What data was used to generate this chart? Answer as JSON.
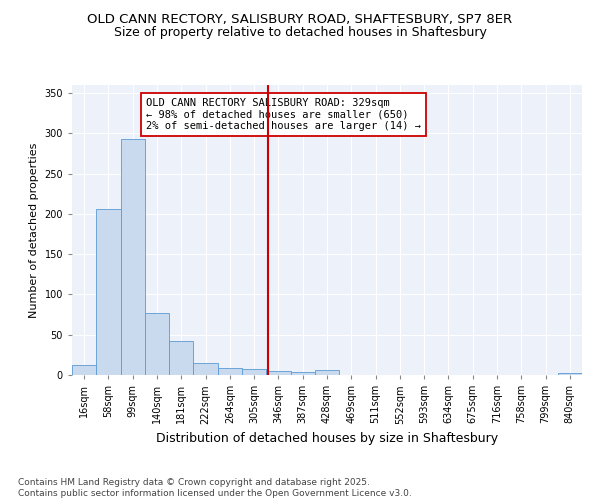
{
  "title": "OLD CANN RECTORY, SALISBURY ROAD, SHAFTESBURY, SP7 8ER",
  "subtitle": "Size of property relative to detached houses in Shaftesbury",
  "xlabel": "Distribution of detached houses by size in Shaftesbury",
  "ylabel": "Number of detached properties",
  "categories": [
    "16sqm",
    "58sqm",
    "99sqm",
    "140sqm",
    "181sqm",
    "222sqm",
    "264sqm",
    "305sqm",
    "346sqm",
    "387sqm",
    "428sqm",
    "469sqm",
    "511sqm",
    "552sqm",
    "593sqm",
    "634sqm",
    "675sqm",
    "716sqm",
    "758sqm",
    "799sqm",
    "840sqm"
  ],
  "values": [
    13,
    206,
    293,
    77,
    42,
    15,
    9,
    7,
    5,
    4,
    6,
    0,
    0,
    0,
    0,
    0,
    0,
    0,
    0,
    0,
    2
  ],
  "bar_color": "#c9d9ee",
  "bar_edge_color": "#5b9bd5",
  "highlight_line_color": "#cc0000",
  "annotation_text": "OLD CANN RECTORY SALISBURY ROAD: 329sqm\n← 98% of detached houses are smaller (650)\n2% of semi-detached houses are larger (14) →",
  "annotation_box_color": "#ffffff",
  "annotation_box_edge_color": "#cc0000",
  "ylim": [
    0,
    360
  ],
  "yticks": [
    0,
    50,
    100,
    150,
    200,
    250,
    300,
    350
  ],
  "bg_color": "#edf1f9",
  "footer_text": "Contains HM Land Registry data © Crown copyright and database right 2025.\nContains public sector information licensed under the Open Government Licence v3.0.",
  "title_fontsize": 9.5,
  "subtitle_fontsize": 9,
  "annotation_fontsize": 7.5,
  "footer_fontsize": 6.5,
  "ylabel_fontsize": 8,
  "xlabel_fontsize": 9,
  "tick_fontsize": 7
}
